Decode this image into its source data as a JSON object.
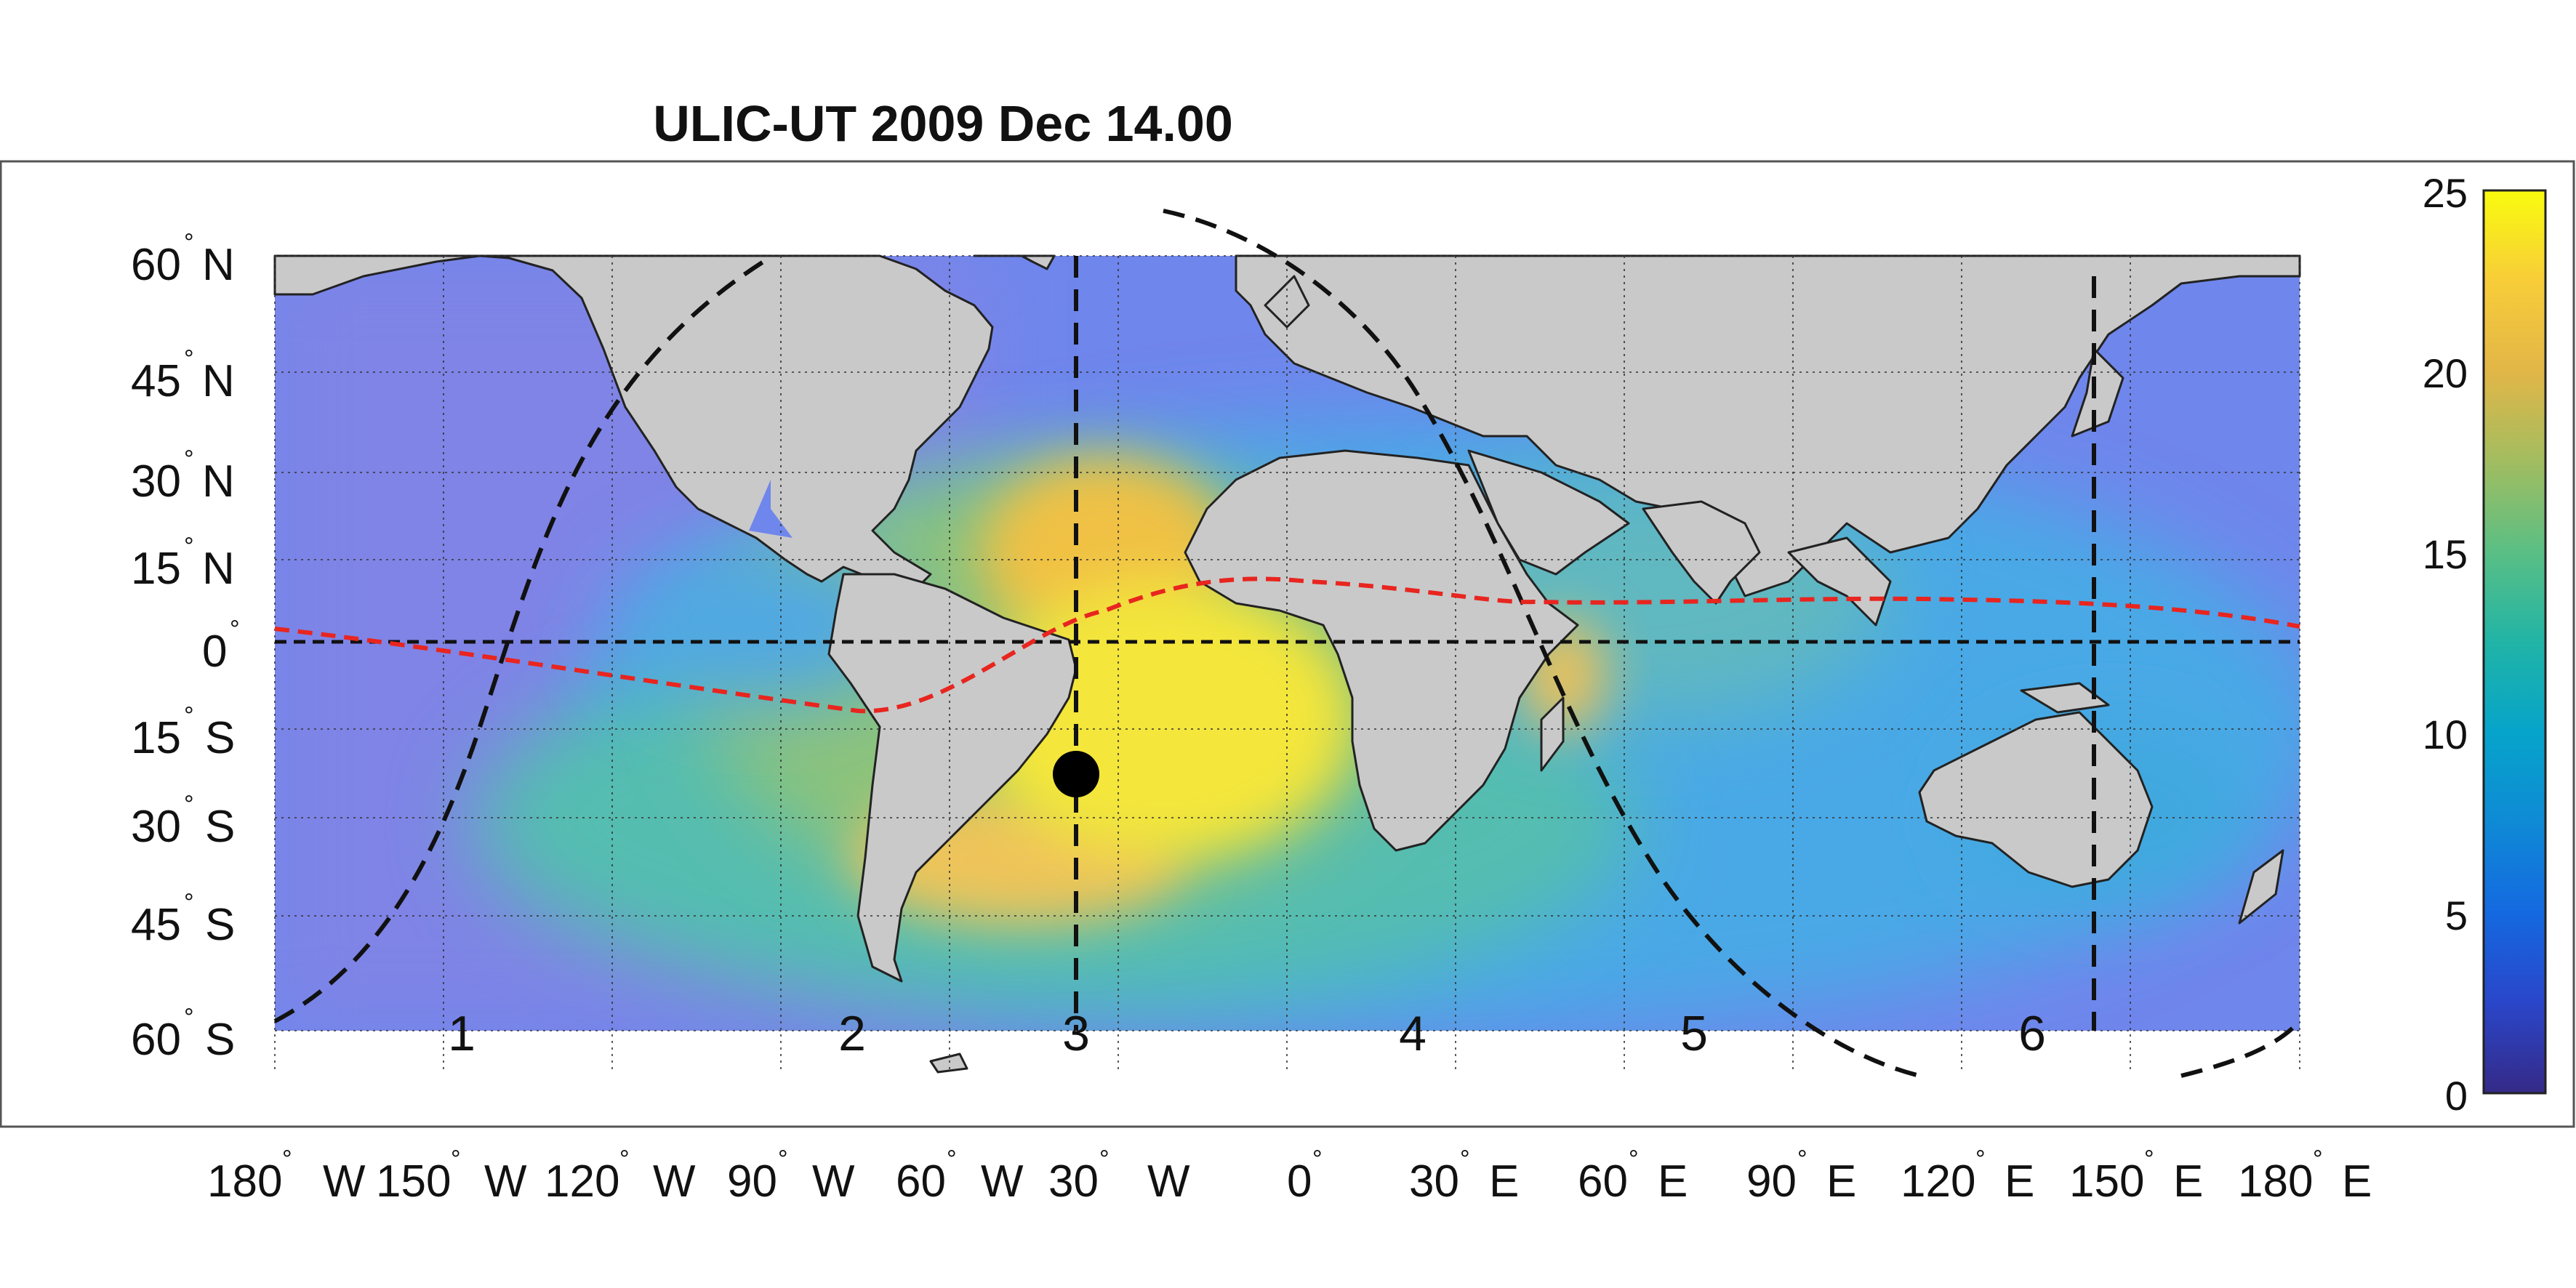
{
  "title": "ULIC-UT 2009 Dec 14.00",
  "map": {
    "lon_ticks": [
      {
        "value": "180",
        "dir": "W"
      },
      {
        "value": "150",
        "dir": "W"
      },
      {
        "value": "120",
        "dir": "W"
      },
      {
        "value": "90",
        "dir": "W"
      },
      {
        "value": "60",
        "dir": "W"
      },
      {
        "value": "30",
        "dir": "W"
      },
      {
        "value": "0",
        "dir": ""
      },
      {
        "value": "30",
        "dir": "E"
      },
      {
        "value": "60",
        "dir": "E"
      },
      {
        "value": "90",
        "dir": "E"
      },
      {
        "value": "120",
        "dir": "E"
      },
      {
        "value": "150",
        "dir": "E"
      },
      {
        "value": "180",
        "dir": "E"
      }
    ],
    "lat_ticks": [
      {
        "value": "60",
        "dir": "N"
      },
      {
        "value": "45",
        "dir": "N"
      },
      {
        "value": "30",
        "dir": "N"
      },
      {
        "value": "15",
        "dir": "N"
      },
      {
        "value": "0",
        "dir": ""
      },
      {
        "value": "15",
        "dir": "S"
      },
      {
        "value": "30",
        "dir": "S"
      },
      {
        "value": "45",
        "dir": "S"
      },
      {
        "value": "60",
        "dir": "S"
      }
    ],
    "region_labels": [
      "1",
      "2",
      "3",
      "4",
      "5",
      "6"
    ],
    "observer_marker_color": "#000000",
    "dip_equator_color": "#e8251f",
    "land_color": "#c9c9c9"
  },
  "colorbar": {
    "ticks": [
      "25",
      "20",
      "15",
      "10",
      "5",
      "0"
    ],
    "colormap": "parula",
    "range": [
      0,
      25
    ]
  }
}
